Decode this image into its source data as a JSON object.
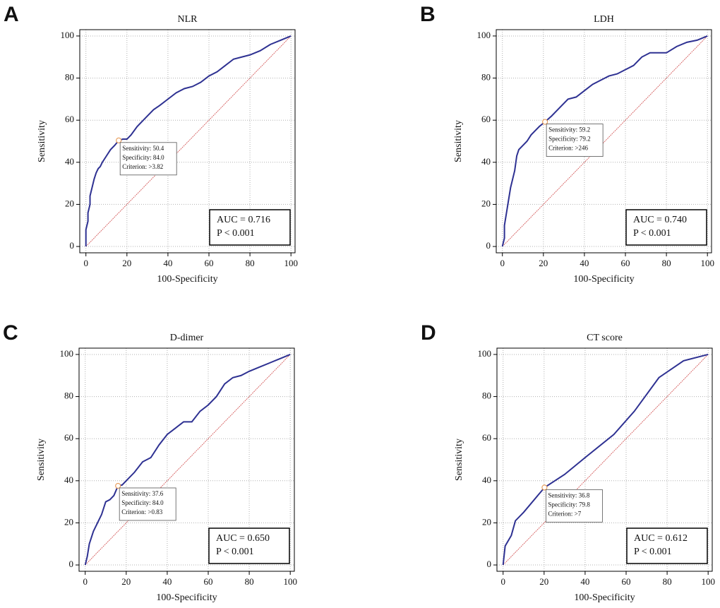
{
  "chart_data": [
    {
      "type": "line",
      "panel": "A",
      "title": "NLR",
      "xlabel": "100-Specificity",
      "ylabel": "Sensitivity",
      "xlim": [
        -3,
        102
      ],
      "ylim": [
        -3,
        103
      ],
      "xticks": [
        0,
        20,
        40,
        60,
        80,
        100
      ],
      "yticks": [
        0,
        20,
        40,
        60,
        80,
        100
      ],
      "grid": true,
      "color": "#2e3192",
      "x": [
        0,
        0,
        1,
        1,
        2,
        2,
        3,
        4,
        5,
        6,
        7,
        8,
        10,
        12,
        14,
        16,
        18,
        20,
        22,
        25,
        28,
        30,
        33,
        36,
        40,
        44,
        48,
        52,
        56,
        60,
        64,
        68,
        72,
        76,
        80,
        85,
        90,
        95,
        100
      ],
      "values": [
        0,
        8,
        12,
        16,
        20,
        24,
        28,
        32,
        35,
        37,
        38,
        40,
        43,
        46,
        48,
        50.4,
        51,
        51,
        53,
        57,
        60,
        62,
        65,
        67,
        70,
        73,
        75,
        76,
        78,
        81,
        83,
        86,
        89,
        90,
        91,
        93,
        96,
        98,
        100
      ],
      "reference_line": {
        "x": [
          0,
          100
        ],
        "values": [
          0,
          100
        ],
        "color": "#d04a4a"
      },
      "criterion_point": {
        "x": 16,
        "y": 50.4,
        "color": "#e8a060"
      },
      "criterion_box": [
        "Sensitivity: 50.4",
        "Specificity: 84.0",
        "Criterion: >3.82"
      ],
      "stats_box": [
        "AUC = 0.716",
        "P < 0.001"
      ]
    },
    {
      "type": "line",
      "panel": "B",
      "title": "LDH",
      "xlabel": "100-Specificity",
      "ylabel": "Sensitivity",
      "xlim": [
        -3,
        102
      ],
      "ylim": [
        -3,
        103
      ],
      "xticks": [
        0,
        20,
        40,
        60,
        80,
        100
      ],
      "yticks": [
        0,
        20,
        40,
        60,
        80,
        100
      ],
      "grid": true,
      "color": "#2e3192",
      "x": [
        0,
        1,
        1,
        2,
        3,
        4,
        5,
        6,
        7,
        8,
        10,
        12,
        14,
        16,
        18,
        20.8,
        24,
        28,
        32,
        36,
        40,
        44,
        48,
        52,
        56,
        60,
        64,
        68,
        72,
        76,
        80,
        85,
        90,
        95,
        100
      ],
      "values": [
        0,
        4,
        10,
        16,
        22,
        28,
        32,
        36,
        43,
        46,
        48,
        50,
        53,
        55,
        57,
        59.2,
        62,
        66,
        70,
        71,
        74,
        77,
        79,
        81,
        82,
        84,
        86,
        90,
        92,
        92,
        92,
        95,
        97,
        98,
        100
      ],
      "reference_line": {
        "x": [
          0,
          100
        ],
        "values": [
          0,
          100
        ],
        "color": "#d04a4a"
      },
      "criterion_point": {
        "x": 20.8,
        "y": 59.2,
        "color": "#e8a060"
      },
      "criterion_box": [
        "Sensitivity: 59.2",
        "Specificity: 79.2",
        "Criterion: >246"
      ],
      "stats_box": [
        "AUC = 0.740",
        "P < 0.001"
      ]
    },
    {
      "type": "line",
      "panel": "C",
      "title": "D-dimer",
      "xlabel": "100-Specificity",
      "ylabel": "Sensitivity",
      "xlim": [
        -3,
        102
      ],
      "ylim": [
        -3,
        103
      ],
      "xticks": [
        0,
        20,
        40,
        60,
        80,
        100
      ],
      "yticks": [
        0,
        20,
        40,
        60,
        80,
        100
      ],
      "grid": true,
      "color": "#2e3192",
      "x": [
        0,
        1,
        2,
        3,
        4,
        6,
        8,
        10,
        12,
        14,
        16,
        18,
        20,
        24,
        28,
        32,
        36,
        40,
        44,
        48,
        52,
        56,
        60,
        64,
        68,
        72,
        76,
        80,
        85,
        90,
        95,
        100
      ],
      "values": [
        0,
        4,
        10,
        13,
        16,
        20,
        24,
        30,
        31,
        33,
        37.6,
        38,
        40,
        44,
        49,
        51,
        57,
        62,
        65,
        68,
        68,
        73,
        76,
        80,
        86,
        89,
        90,
        92,
        94,
        96,
        98,
        100
      ],
      "reference_line": {
        "x": [
          0,
          100
        ],
        "values": [
          0,
          100
        ],
        "color": "#d04a4a"
      },
      "criterion_point": {
        "x": 16,
        "y": 37.6,
        "color": "#e8a060"
      },
      "criterion_box": [
        "Sensitivity: 37.6",
        "Specificity: 84.0",
        "Criterion: >0.83"
      ],
      "stats_box": [
        "AUC = 0.650",
        "P < 0.001"
      ]
    },
    {
      "type": "line",
      "panel": "D",
      "title": "CT score",
      "xlabel": "100-Specificity",
      "ylabel": "Sensitivity",
      "xlim": [
        -3,
        102
      ],
      "ylim": [
        -3,
        103
      ],
      "xticks": [
        0,
        20,
        40,
        60,
        80,
        100
      ],
      "yticks": [
        0,
        20,
        40,
        60,
        80,
        100
      ],
      "grid": true,
      "color": "#2e3192",
      "x": [
        0,
        1,
        4,
        6,
        10,
        20.2,
        30,
        40,
        54,
        64,
        76,
        88,
        100
      ],
      "values": [
        0,
        9,
        14,
        21,
        25,
        36.8,
        43,
        51,
        62,
        73,
        89,
        97,
        100
      ],
      "reference_line": {
        "x": [
          0,
          100
        ],
        "values": [
          0,
          100
        ],
        "color": "#d04a4a"
      },
      "criterion_point": {
        "x": 20.2,
        "y": 36.8,
        "color": "#e8a060"
      },
      "criterion_box": [
        "Sensitivity: 36.8",
        "Specificity: 79.8",
        "Criterion: >7"
      ],
      "stats_box": [
        "AUC = 0.612",
        "P < 0.001"
      ]
    }
  ]
}
